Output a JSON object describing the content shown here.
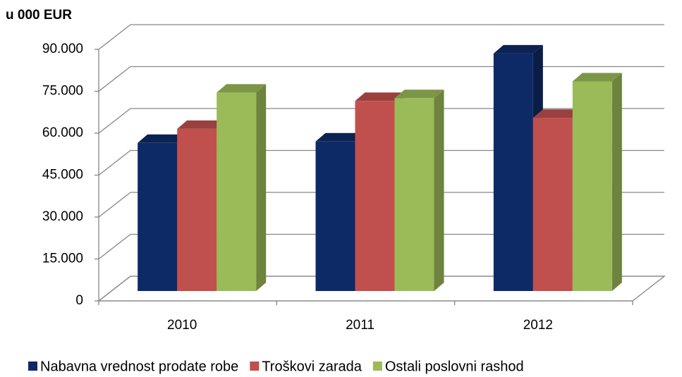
{
  "chart_data": {
    "type": "bar3d",
    "y_axis_label": "u 000 EUR",
    "categories": [
      "2010",
      "2011",
      "2012"
    ],
    "series": [
      {
        "name": "Nabavna vrednost prodate robe",
        "color": "#0e2a66",
        "values": [
          53000,
          53500,
          85000
        ]
      },
      {
        "name": "Troškovi zarada",
        "color": "#c0504d",
        "values": [
          58000,
          68000,
          62000
        ]
      },
      {
        "name": "Ostali poslovni rashod",
        "color": "#9bbb59",
        "values": [
          71000,
          69000,
          75000
        ]
      }
    ],
    "ylim": [
      0,
      90000
    ],
    "yticks": [
      0,
      {
        "value": 15000,
        "label": "15.000"
      },
      {
        "value": 30000,
        "label": "30.000"
      },
      {
        "value": 45000,
        "label": "45.000"
      },
      {
        "value": 60000,
        "label": "60.000"
      },
      {
        "value": 75000,
        "label": "75.000"
      },
      {
        "value": 90000,
        "label": "90.000"
      }
    ],
    "grid": true,
    "legend": "bottom"
  }
}
